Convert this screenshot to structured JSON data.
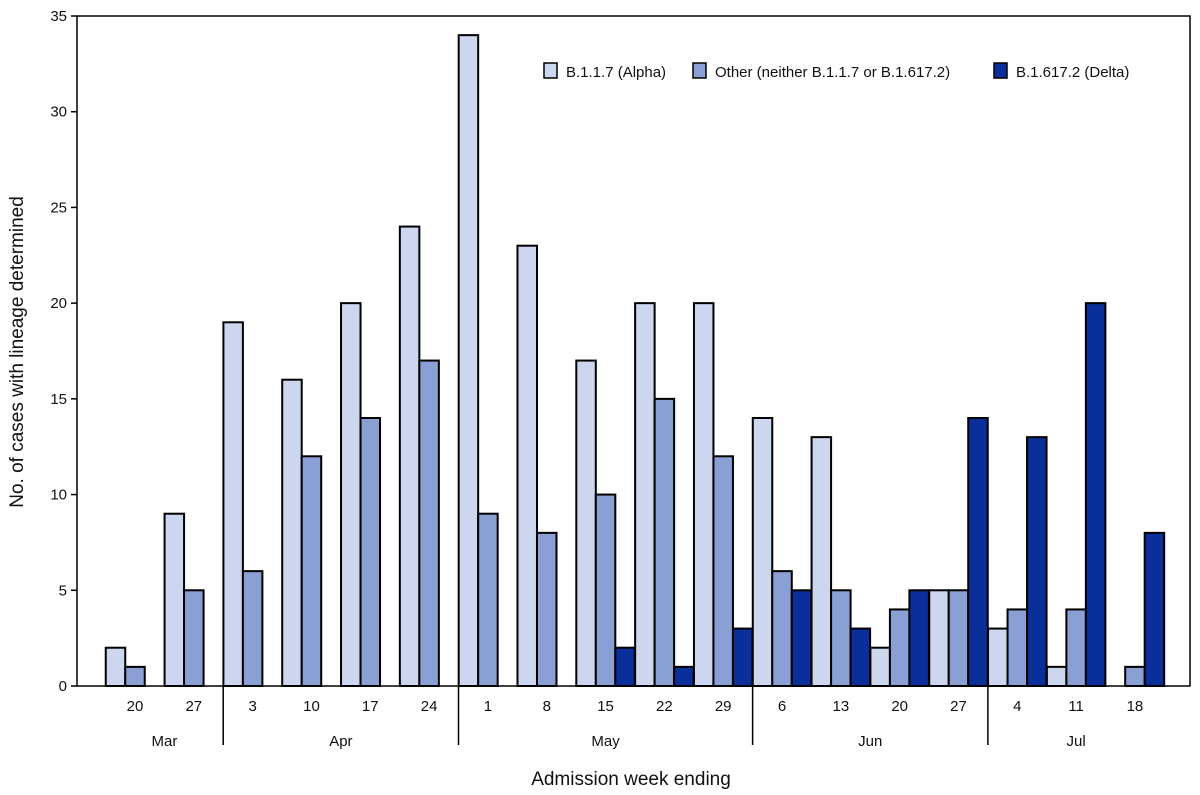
{
  "chart_data": {
    "type": "bar",
    "xlabel": "Admission week ending",
    "ylabel": "No. of cases with lineage determined",
    "ylim": [
      0,
      35
    ],
    "yticks": [
      0,
      5,
      10,
      15,
      20,
      25,
      30,
      35
    ],
    "grid": false,
    "legend_position": "top-right",
    "categories": [
      "20",
      "27",
      "3",
      "10",
      "17",
      "24",
      "1",
      "8",
      "15",
      "22",
      "29",
      "6",
      "13",
      "20",
      "27",
      "4",
      "11",
      "18"
    ],
    "months": [
      {
        "label": "Mar",
        "start": 0,
        "end": 1
      },
      {
        "label": "Apr",
        "start": 2,
        "end": 5
      },
      {
        "label": "May",
        "start": 6,
        "end": 10
      },
      {
        "label": "Jun",
        "start": 11,
        "end": 14
      },
      {
        "label": "Jul",
        "start": 15,
        "end": 17
      }
    ],
    "series": [
      {
        "name": "B.1.1.7 (Alpha)",
        "color": "#ccd6ee",
        "values": [
          2,
          9,
          19,
          16,
          20,
          24,
          34,
          23,
          17,
          20,
          20,
          14,
          13,
          2,
          5,
          3,
          1,
          0
        ]
      },
      {
        "name": "Other (neither B.1.1.7 or B.1.617.2)",
        "color": "#8aa0d4",
        "values": [
          1,
          5,
          6,
          12,
          14,
          17,
          9,
          8,
          10,
          15,
          12,
          6,
          5,
          4,
          5,
          4,
          4,
          1
        ]
      },
      {
        "name": "B.1.617.2 (Delta)",
        "color": "#0a2f9a",
        "values": [
          0,
          0,
          0,
          0,
          0,
          0,
          0,
          0,
          2,
          1,
          3,
          5,
          3,
          5,
          14,
          13,
          20,
          8
        ]
      }
    ]
  }
}
